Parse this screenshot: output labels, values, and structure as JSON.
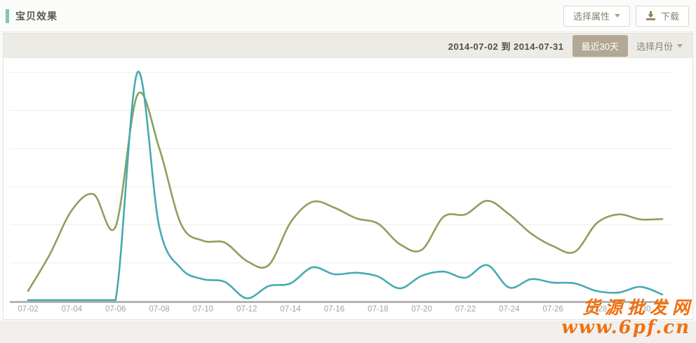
{
  "header": {
    "title": "宝贝效果",
    "select_attribute_label": "选择属性",
    "download_label": "下载"
  },
  "toolbar": {
    "date_range": "2014-07-02 到 2014-07-31",
    "last30_label": "最近30天",
    "select_month_label": "选择月份"
  },
  "watermark": {
    "line1": "货源批发网",
    "line2": "www.6pf.cn",
    "color": "#f1700f"
  },
  "colors": {
    "accent_bar": "#84c2bb",
    "olive_line": "#8ba15e",
    "teal_line": "#46aab2",
    "gridline": "#eeede9",
    "axis": "#b4b4b2",
    "tick_label": "#a3a29e",
    "last30_bg": "#b2a894"
  },
  "chart_data": {
    "type": "line",
    "title": "",
    "xlabel": "",
    "ylabel": "",
    "x": [
      "07-02",
      "07-03",
      "07-04",
      "07-05",
      "07-06",
      "07-07",
      "07-08",
      "07-09",
      "07-10",
      "07-11",
      "07-12",
      "07-13",
      "07-14",
      "07-15",
      "07-16",
      "07-17",
      "07-18",
      "07-19",
      "07-20",
      "07-21",
      "07-22",
      "07-23",
      "07-24",
      "07-25",
      "07-26",
      "07-27",
      "07-28",
      "07-29",
      "07-30",
      "07-31"
    ],
    "tick_every": 2,
    "y_axis_visible": false,
    "legend": "none",
    "grid": "horizontal",
    "gridline_values": [
      1,
      2,
      3,
      4,
      5,
      6
    ],
    "ylim": [
      0,
      6.5
    ],
    "series": [
      {
        "name": "olive-line",
        "color": "#8ba15e",
        "values": [
          0.26,
          1.23,
          2.38,
          2.8,
          1.95,
          5.41,
          4.01,
          2.01,
          1.58,
          1.53,
          1.05,
          0.94,
          2.06,
          2.6,
          2.45,
          2.17,
          2.03,
          1.49,
          1.34,
          2.21,
          2.27,
          2.63,
          2.27,
          1.77,
          1.44,
          1.29,
          2.04,
          2.27,
          2.14,
          2.15
        ]
      },
      {
        "name": "teal-line",
        "color": "#46aab2",
        "values": [
          0.02,
          0.02,
          0.02,
          0.02,
          0.02,
          6.0,
          1.95,
          0.85,
          0.57,
          0.5,
          0.07,
          0.39,
          0.46,
          0.88,
          0.7,
          0.74,
          0.64,
          0.33,
          0.66,
          0.77,
          0.61,
          0.94,
          0.35,
          0.57,
          0.48,
          0.46,
          0.26,
          0.22,
          0.37,
          0.17
        ]
      }
    ]
  }
}
